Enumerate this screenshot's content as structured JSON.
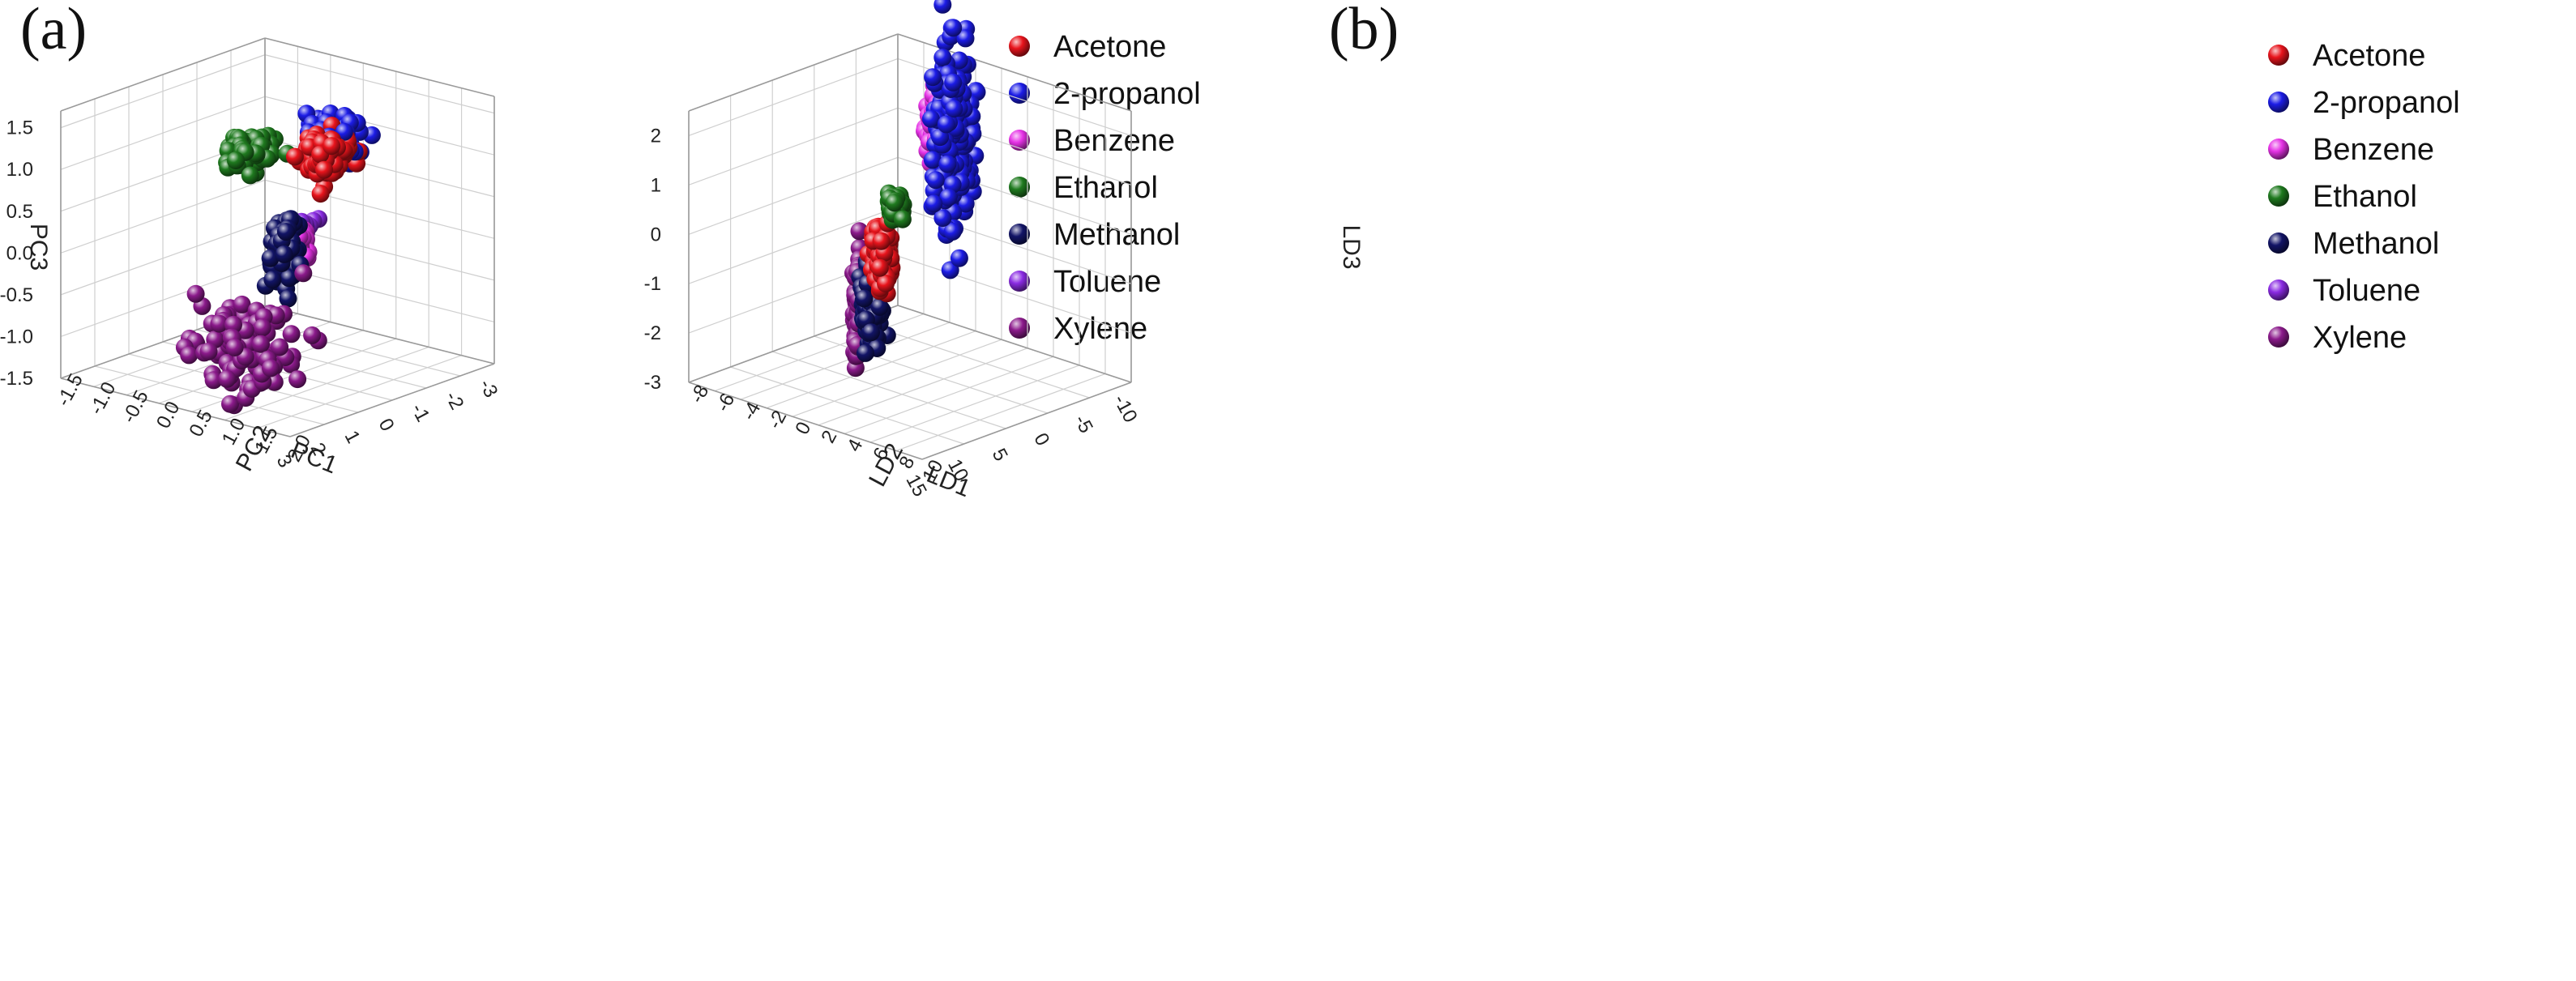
{
  "chart_data": [
    {
      "type": "scatter",
      "panel_label": "(a)",
      "projection": "3d",
      "axes": {
        "x": {
          "label": "PC1",
          "ticks": [
            "-3",
            "-2",
            "-1",
            "0",
            "1",
            "2",
            "3"
          ],
          "range": [
            -3,
            3
          ]
        },
        "y": {
          "label": "PC2",
          "ticks": [
            "-1.5",
            "-1.0",
            "-0.5",
            "0.0",
            "0.5",
            "1.0",
            "1.5",
            "2.0"
          ],
          "range": [
            -1.5,
            2.0
          ]
        },
        "z": {
          "label": "PC3",
          "ticks": [
            "-1.5",
            "-1.0",
            "-0.5",
            "0.0",
            "0.5",
            "1.0",
            "1.5"
          ],
          "range": [
            -1.5,
            1.7
          ]
        }
      },
      "grid": true,
      "legend_position": "top-right",
      "series": [
        {
          "name": "Acetone",
          "color": "#e8141c",
          "center": [
            0.8,
            1.4,
            1.45
          ],
          "spread": [
            0.25,
            0.15,
            0.12
          ],
          "count": 130
        },
        {
          "name": "2-propanol",
          "color": "#1c1ce6",
          "center": [
            0.2,
            1.2,
            1.45
          ],
          "spread": [
            0.25,
            0.15,
            0.14
          ],
          "count": 130
        },
        {
          "name": "Benzene",
          "color": "#e632e6",
          "center": [
            0.0,
            0.6,
            0.1
          ],
          "spread": [
            0.08,
            0.05,
            0.1
          ],
          "count": 55
        },
        {
          "name": "Ethanol",
          "color": "#1f7a1f",
          "center": [
            -2.2,
            -1.3,
            0.5
          ],
          "spread": [
            0.25,
            0.12,
            0.08
          ],
          "count": 110
        },
        {
          "name": "Methanol",
          "color": "#121466",
          "center": [
            0.7,
            0.7,
            0.1
          ],
          "spread": [
            0.12,
            0.08,
            0.17
          ],
          "count": 120
        },
        {
          "name": "Toluene",
          "color": "#8a2be2",
          "center": [
            -0.4,
            0.4,
            0.2
          ],
          "spread": [
            0.18,
            0.03,
            0.03
          ],
          "count": 28
        },
        {
          "name": "Xylene",
          "color": "#8b1a8b",
          "center": [
            2.3,
            1.0,
            -0.7
          ],
          "spread": [
            0.55,
            0.3,
            0.25
          ],
          "count": 110
        }
      ]
    },
    {
      "type": "scatter",
      "panel_label": "(b)",
      "projection": "3d",
      "axes": {
        "x": {
          "label": "LD1",
          "ticks": [
            "-10",
            "-5",
            "0",
            "5",
            "10",
            "15"
          ],
          "range": [
            -10,
            15
          ]
        },
        "y": {
          "label": "LD2",
          "ticks": [
            "-8",
            "-6",
            "-4",
            "-2",
            "0",
            "2",
            "4",
            "6",
            "8",
            "10"
          ],
          "range": [
            -8,
            10
          ]
        },
        "z": {
          "label": "LD3",
          "ticks": [
            "-3",
            "-2",
            "-1",
            "0",
            "1",
            "2"
          ],
          "range": [
            -3,
            2.5
          ]
        }
      },
      "grid": true,
      "legend_position": "top-right",
      "series": [
        {
          "name": "Acetone",
          "color": "#e8141c",
          "center": [
            9,
            3,
            0.2
          ],
          "spread": [
            0.4,
            0.3,
            0.32
          ],
          "count": 120
        },
        {
          "name": "2-propanol",
          "color": "#1c1ce6",
          "center": [
            2,
            4,
            2.3
          ],
          "spread": [
            0.9,
            0.4,
            0.85
          ],
          "count": 240
        },
        {
          "name": "Benzene",
          "color": "#e632e6",
          "center": [
            -4,
            -1,
            1.6
          ],
          "spread": [
            0.35,
            0.3,
            0.35
          ],
          "count": 120
        },
        {
          "name": "Ethanol",
          "color": "#1f7a1f",
          "center": [
            12,
            6,
            1.6
          ],
          "spread": [
            0.3,
            0.2,
            0.12
          ],
          "count": 45
        },
        {
          "name": "Methanol",
          "color": "#121466",
          "center": [
            7,
            1,
            -1.2
          ],
          "spread": [
            0.45,
            0.3,
            0.3
          ],
          "count": 140
        },
        {
          "name": "Toluene",
          "color": "#8a2be2",
          "center": [
            -7,
            -2,
            1.8
          ],
          "spread": [
            0.3,
            0.25,
            0.25
          ],
          "count": 90
        },
        {
          "name": "Xylene",
          "color": "#8b1a8b",
          "center": [
            1,
            -4,
            -2.0
          ],
          "spread": [
            0.15,
            0.1,
            0.6
          ],
          "count": 80
        }
      ]
    }
  ]
}
